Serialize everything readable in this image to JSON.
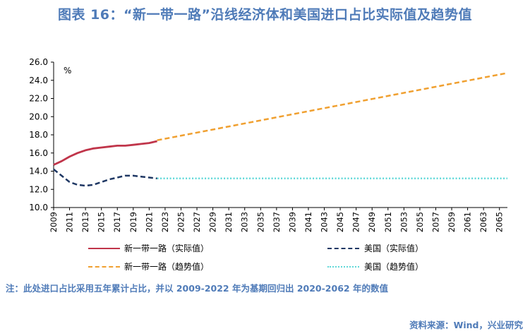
{
  "title": "图表 16：“新一带一路”沿线经济体和美国进口占比实际值及趋势值",
  "note": "注：此处进口占比采用五年累计占比，并以 2009-2022 年为基期回归出 2020-2062 年的数值",
  "source": "资料来源：Wind，兴业研究",
  "chart_data": {
    "type": "line",
    "unit": "%",
    "ylim": [
      10.0,
      26.0
    ],
    "yticks": [
      10.0,
      12.0,
      14.0,
      16.0,
      18.0,
      20.0,
      22.0,
      24.0,
      26.0
    ],
    "xlim": [
      2009,
      2066
    ],
    "xticks": [
      2009,
      2011,
      2013,
      2015,
      2017,
      2019,
      2021,
      2023,
      2025,
      2027,
      2029,
      2031,
      2033,
      2035,
      2037,
      2039,
      2041,
      2043,
      2045,
      2047,
      2049,
      2051,
      2053,
      2055,
      2057,
      2059,
      2061,
      2063,
      2065
    ],
    "grid": false,
    "series": [
      {
        "name": "新一带一路（实际值）",
        "color": "#c0354a",
        "style": "solid",
        "x": [
          2009,
          2010,
          2011,
          2012,
          2013,
          2014,
          2015,
          2016,
          2017,
          2018,
          2019,
          2020,
          2021,
          2022
        ],
        "y": [
          14.7,
          15.1,
          15.6,
          16.0,
          16.3,
          16.5,
          16.6,
          16.7,
          16.8,
          16.8,
          16.9,
          17.0,
          17.1,
          17.3
        ]
      },
      {
        "name": "美国（实际值）",
        "color": "#1f3864",
        "style": "dashed",
        "x": [
          2009,
          2010,
          2011,
          2012,
          2013,
          2014,
          2015,
          2016,
          2017,
          2018,
          2019,
          2020,
          2021,
          2022
        ],
        "y": [
          14.2,
          13.5,
          12.8,
          12.5,
          12.4,
          12.5,
          12.8,
          13.1,
          13.3,
          13.5,
          13.5,
          13.4,
          13.3,
          13.2
        ]
      },
      {
        "name": "新一带一路（趋势值）",
        "color": "#f0a030",
        "style": "dashed",
        "x": [
          2022,
          2066
        ],
        "y": [
          17.4,
          24.8
        ]
      },
      {
        "name": "美国（趋势值）",
        "color": "#5fd8d8",
        "style": "dotted",
        "x": [
          2022,
          2066
        ],
        "y": [
          13.2,
          13.2
        ]
      }
    ]
  }
}
